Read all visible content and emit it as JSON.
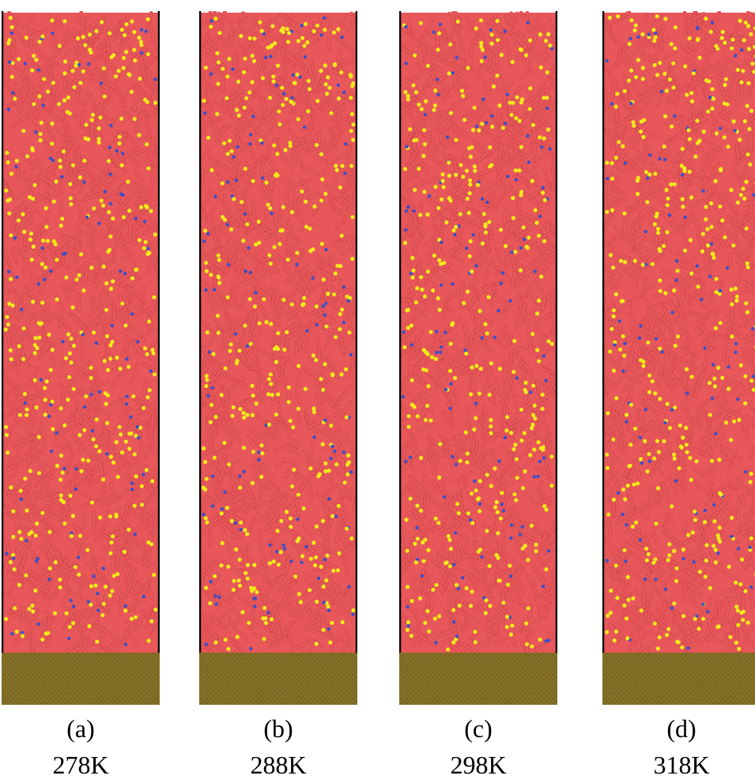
{
  "colors": {
    "background": "#ffffff",
    "rods": "#e8575a",
    "rods_dark": "#c94448",
    "beads_yellow": "#f2ea1a",
    "beads_blue": "#3a4fc8",
    "substrate": "#7a6620",
    "substrate_light": "#8c7730",
    "walls": "#000000"
  },
  "panels": [
    {
      "label": "(a)",
      "temperature": "278K"
    },
    {
      "label": "(b)",
      "temperature": "288K"
    },
    {
      "label": "(c)",
      "temperature": "298K"
    },
    {
      "label": "(d)",
      "temperature": "318K"
    }
  ]
}
